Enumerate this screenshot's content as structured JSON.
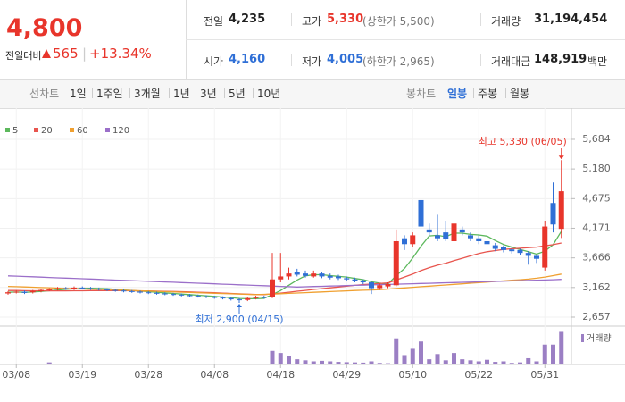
{
  "header": {
    "price": "4,800",
    "change_label": "전일대비",
    "change": "565",
    "change_pct": "+13.34%",
    "stats": [
      {
        "label": "전일",
        "value": "4,235"
      },
      {
        "label": "고가",
        "value": "5,330",
        "note": "(상한가 5,500)"
      },
      {
        "label": "거래량",
        "value": "31,194,454"
      },
      {
        "label": "시가",
        "value": "4,160"
      },
      {
        "label": "저가",
        "value": "4,005",
        "note": "(하한가 2,965)"
      },
      {
        "label": "거래대금",
        "value": "148,919",
        "unit": "백만"
      }
    ]
  },
  "tabs": {
    "line_title": "선차트",
    "line_items": [
      "1일",
      "1주일",
      "3개월",
      "1년",
      "3년",
      "5년",
      "10년"
    ],
    "candle_title": "봉차트",
    "candle_items": [
      "일봉",
      "주봉",
      "월봉"
    ]
  },
  "chart_data": {
    "type": "candlestick",
    "up_color": "#e8352b",
    "down_color": "#2f6fd6",
    "grid": true,
    "categories": [
      null,
      "03/08",
      null,
      null,
      null,
      null,
      null,
      null,
      null,
      "03/19",
      null,
      null,
      null,
      null,
      null,
      null,
      null,
      "03/28",
      null,
      null,
      null,
      null,
      null,
      null,
      null,
      "04/08",
      null,
      null,
      null,
      null,
      null,
      null,
      null,
      "04/18",
      null,
      null,
      null,
      null,
      null,
      null,
      null,
      "04/29",
      null,
      null,
      null,
      null,
      null,
      null,
      null,
      "05/10",
      null,
      null,
      null,
      null,
      null,
      null,
      null,
      "05/22",
      null,
      null,
      null,
      null,
      null,
      null,
      null,
      "05/31",
      null,
      null
    ],
    "open": [
      3060,
      3080,
      3090,
      3080,
      3100,
      3120,
      3130,
      3150,
      3140,
      3160,
      3150,
      3140,
      3130,
      3120,
      3110,
      3100,
      3090,
      3080,
      3070,
      3060,
      3050,
      3040,
      3030,
      3020,
      3010,
      3000,
      2990,
      2980,
      2960,
      2950,
      2980,
      3000,
      3000,
      3300,
      3350,
      3420,
      3400,
      3350,
      3400,
      3360,
      3350,
      3320,
      3300,
      3280,
      3250,
      3150,
      3180,
      3200,
      4000,
      3900,
      4650,
      4150,
      4050,
      4100,
      3950,
      4150,
      4050,
      4000,
      3950,
      3880,
      3850,
      3810,
      3800,
      3750,
      3700,
      3500,
      4600,
      4160
    ],
    "high": [
      3100,
      3110,
      3110,
      3120,
      3140,
      3150,
      3170,
      3170,
      3180,
      3180,
      3170,
      3160,
      3150,
      3140,
      3130,
      3120,
      3110,
      3100,
      3090,
      3080,
      3070,
      3060,
      3050,
      3040,
      3030,
      3020,
      3010,
      3000,
      2980,
      3000,
      3020,
      3020,
      3750,
      3750,
      3500,
      3480,
      3450,
      3450,
      3420,
      3400,
      3380,
      3350,
      3330,
      3300,
      3280,
      3230,
      3250,
      4150,
      4050,
      4100,
      4900,
      4250,
      4400,
      4300,
      4350,
      4200,
      4100,
      4050,
      4000,
      3920,
      3880,
      3850,
      3820,
      3780,
      3720,
      4300,
      4950,
      5330
    ],
    "low": [
      3040,
      3060,
      3050,
      3060,
      3080,
      3100,
      3110,
      3120,
      3120,
      3130,
      3120,
      3110,
      3100,
      3090,
      3080,
      3070,
      3060,
      3050,
      3040,
      3030,
      3020,
      3010,
      3000,
      2990,
      2980,
      2970,
      2960,
      2940,
      2900,
      2930,
      2960,
      2970,
      2980,
      3250,
      3300,
      3350,
      3330,
      3330,
      3320,
      3300,
      3290,
      3270,
      3250,
      3220,
      3050,
      3120,
      3150,
      3180,
      3800,
      3850,
      4150,
      4050,
      3950,
      3950,
      3900,
      4050,
      3950,
      3900,
      3850,
      3780,
      3760,
      3740,
      3720,
      3550,
      3580,
      3450,
      4100,
      4005
    ],
    "close": [
      3080,
      3090,
      3070,
      3100,
      3120,
      3130,
      3150,
      3140,
      3160,
      3150,
      3140,
      3130,
      3120,
      3110,
      3100,
      3090,
      3080,
      3070,
      3060,
      3050,
      3040,
      3030,
      3020,
      3010,
      3000,
      2990,
      2980,
      2960,
      2950,
      2980,
      3000,
      2990,
      3300,
      3350,
      3400,
      3380,
      3360,
      3400,
      3350,
      3330,
      3320,
      3300,
      3280,
      3250,
      3150,
      3200,
      3220,
      3950,
      3900,
      4050,
      4200,
      4100,
      4000,
      3980,
      4250,
      4100,
      4000,
      3950,
      3900,
      3820,
      3800,
      3780,
      3750,
      3700,
      3650,
      4200,
      4235,
      4800
    ],
    "volume": [
      400000,
      350000,
      300000,
      380000,
      500000,
      2000000,
      600000,
      500000,
      450000,
      400000,
      350000,
      300000,
      300000,
      280000,
      260000,
      250000,
      240000,
      230000,
      220000,
      210000,
      200000,
      200000,
      250000,
      300000,
      280000,
      260000,
      300000,
      400000,
      600000,
      500000,
      450000,
      400000,
      13000000,
      11000000,
      8000000,
      5000000,
      4000000,
      3000000,
      3500000,
      3000000,
      2500000,
      2200000,
      2000000,
      1800000,
      3000000,
      1500000,
      1200000,
      25000000,
      9000000,
      15000000,
      22000000,
      5000000,
      10000000,
      4000000,
      11000000,
      5000000,
      4000000,
      3000000,
      4500000,
      2500000,
      3000000,
      1500000,
      2000000,
      6000000,
      3000000,
      19000000,
      19000000,
      31194454
    ],
    "volume_ylim": [
      0,
      35000000
    ],
    "volume_label": "거래량",
    "volume_color": "#9b7fc4",
    "ma": [
      {
        "name": "5",
        "color": "#5cb85c",
        "values": [
          3080,
          3085,
          3080,
          3085,
          3095,
          3105,
          3120,
          3130,
          3140,
          3148,
          3150,
          3145,
          3140,
          3130,
          3120,
          3110,
          3100,
          3090,
          3080,
          3070,
          3060,
          3050,
          3040,
          3030,
          3020,
          3010,
          3000,
          2990,
          2975,
          2970,
          2972,
          2976,
          3040,
          3110,
          3200,
          3290,
          3360,
          3380,
          3380,
          3364,
          3352,
          3340,
          3316,
          3296,
          3260,
          3236,
          3220,
          3364,
          3484,
          3664,
          3864,
          4040,
          4050,
          4026,
          4086,
          4086,
          4066,
          4056,
          4036,
          3960,
          3894,
          3850,
          3810,
          3770,
          3730,
          3780,
          3890,
          4120
        ]
      },
      {
        "name": "20",
        "color": "#e8554e",
        "values": [
          3110,
          3110,
          3108,
          3106,
          3105,
          3104,
          3104,
          3104,
          3105,
          3106,
          3107,
          3108,
          3108,
          3108,
          3107,
          3106,
          3104,
          3102,
          3100,
          3097,
          3094,
          3090,
          3086,
          3082,
          3077,
          3072,
          3066,
          3060,
          3054,
          3048,
          3043,
          3040,
          3052,
          3066,
          3082,
          3098,
          3112,
          3128,
          3142,
          3156,
          3170,
          3184,
          3198,
          3212,
          3220,
          3230,
          3240,
          3290,
          3340,
          3390,
          3450,
          3500,
          3540,
          3575,
          3620,
          3660,
          3700,
          3740,
          3770,
          3790,
          3810,
          3820,
          3830,
          3840,
          3850,
          3870,
          3890,
          3920
        ]
      },
      {
        "name": "60",
        "color": "#f0a030",
        "values": [
          3180,
          3175,
          3171,
          3166,
          3161,
          3157,
          3152,
          3147,
          3143,
          3138,
          3133,
          3129,
          3124,
          3119,
          3115,
          3110,
          3105,
          3101,
          3096,
          3091,
          3087,
          3082,
          3077,
          3073,
          3068,
          3063,
          3059,
          3054,
          3049,
          3045,
          3040,
          3045,
          3050,
          3056,
          3062,
          3068,
          3074,
          3080,
          3086,
          3092,
          3098,
          3104,
          3110,
          3115,
          3120,
          3125,
          3135,
          3145,
          3155,
          3165,
          3175,
          3185,
          3195,
          3205,
          3215,
          3225,
          3235,
          3245,
          3255,
          3265,
          3275,
          3285,
          3295,
          3305,
          3320,
          3340,
          3365,
          3390
        ]
      },
      {
        "name": "120",
        "color": "#9b6fc9",
        "values": [
          3360,
          3355,
          3349,
          3344,
          3338,
          3333,
          3327,
          3322,
          3317,
          3311,
          3306,
          3300,
          3295,
          3289,
          3284,
          3279,
          3273,
          3268,
          3262,
          3257,
          3251,
          3246,
          3241,
          3235,
          3230,
          3224,
          3219,
          3213,
          3208,
          3203,
          3197,
          3192,
          3186,
          3181,
          3175,
          3170,
          3174,
          3178,
          3182,
          3186,
          3190,
          3194,
          3198,
          3202,
          3206,
          3210,
          3214,
          3218,
          3222,
          3226,
          3230,
          3234,
          3238,
          3242,
          3246,
          3250,
          3254,
          3258,
          3262,
          3266,
          3270,
          3274,
          3278,
          3282,
          3286,
          3290,
          3295,
          3300
        ]
      }
    ],
    "ylim": [
      2505,
      5927
    ],
    "yticks": [
      {
        "value": 5684,
        "label": "5,684"
      },
      {
        "value": 5180,
        "label": "5,180"
      },
      {
        "value": 4675,
        "label": "4,675"
      },
      {
        "value": 4171,
        "label": "4,171"
      },
      {
        "value": 3666,
        "label": "3,666"
      },
      {
        "value": 3162,
        "label": "3,162"
      },
      {
        "value": 2657,
        "label": "2,657"
      }
    ],
    "annotations": [
      {
        "text": "최고 5,330 (06/05)"
      },
      {
        "text": "최저 2,900 (04/15)"
      }
    ]
  }
}
